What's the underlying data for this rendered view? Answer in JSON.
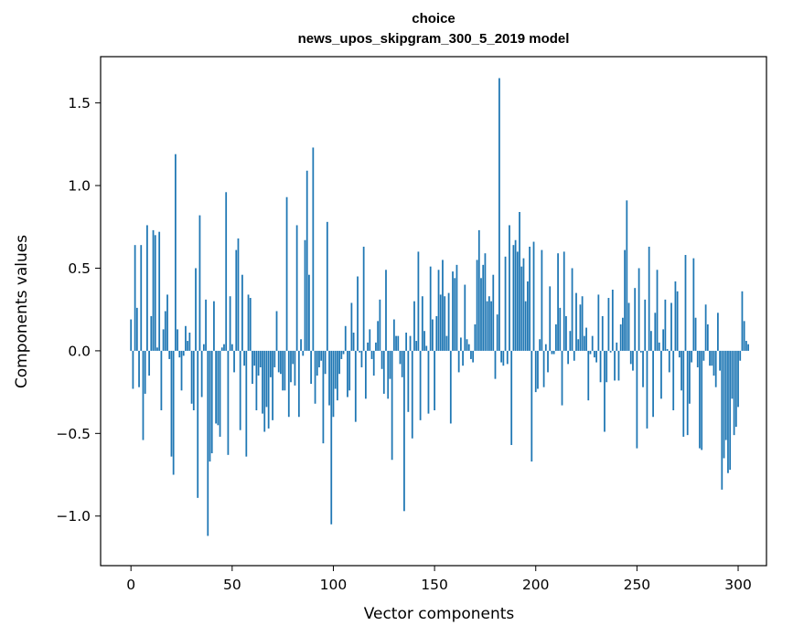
{
  "chart_data": {
    "type": "bar",
    "title": "choice",
    "subtitle": "news_upos_skipgram_300_5_2019 model",
    "xlabel": "Vector components",
    "ylabel": "Components values",
    "xlim": [
      -15,
      314
    ],
    "ylim": [
      -1.3,
      1.78
    ],
    "xticks": [
      0,
      50,
      100,
      150,
      200,
      250,
      300
    ],
    "yticks": [
      -1.0,
      -0.5,
      0.0,
      0.5,
      1.0,
      1.5
    ],
    "ytick_labels": [
      "−1.0",
      "−0.5",
      "0.0",
      "0.5",
      "1.0",
      "1.5"
    ],
    "bar_color": "#1f77b4",
    "x": "0..299",
    "values": [
      0.19,
      -0.23,
      0.64,
      0.26,
      -0.22,
      0.64,
      -0.54,
      -0.26,
      0.76,
      -0.15,
      0.21,
      0.73,
      0.7,
      0.02,
      0.72,
      -0.36,
      0.13,
      0.24,
      0.34,
      -0.05,
      -0.64,
      -0.75,
      1.19,
      0.13,
      -0.04,
      -0.24,
      -0.03,
      0.15,
      0.06,
      0.11,
      -0.32,
      -0.36,
      0.5,
      -0.89,
      0.82,
      -0.28,
      0.04,
      0.31,
      -1.12,
      -0.67,
      -0.62,
      0.3,
      -0.44,
      -0.45,
      -0.52,
      0.02,
      0.04,
      0.96,
      -0.63,
      0.33,
      0.04,
      -0.13,
      0.61,
      0.68,
      -0.48,
      0.46,
      -0.09,
      -0.64,
      0.34,
      0.32,
      -0.2,
      -0.09,
      -0.36,
      -0.15,
      -0.1,
      -0.38,
      -0.49,
      -0.34,
      -0.47,
      -0.16,
      -0.42,
      -0.1,
      0.24,
      -0.13,
      -0.14,
      -0.24,
      -0.24,
      0.93,
      -0.4,
      -0.19,
      -0.08,
      -0.21,
      0.76,
      -0.4,
      0.07,
      -0.03,
      0.67,
      1.09,
      0.46,
      -0.2,
      1.23,
      -0.32,
      -0.15,
      -0.1,
      -0.06,
      -0.56,
      -0.14,
      0.78,
      -0.33,
      -1.05,
      -0.4,
      -0.23,
      -0.3,
      -0.14,
      -0.05,
      -0.02,
      0.15,
      -0.28,
      -0.24,
      0.29,
      0.11,
      -0.43,
      0.45,
      -0.01,
      -0.1,
      0.63,
      -0.29,
      0.05,
      0.13,
      -0.05,
      -0.15,
      0.05,
      0.18,
      0.31,
      -0.11,
      -0.26,
      0.49,
      -0.29,
      -0.17,
      -0.66,
      0.19,
      0.09,
      0.09,
      -0.08,
      -0.16,
      -0.97,
      0.11,
      -0.37,
      0.09,
      -0.53,
      0.3,
      0.06,
      0.6,
      -0.42,
      0.33,
      0.12,
      0.03,
      -0.38,
      0.51,
      0.19,
      -0.36,
      0.21,
      0.49,
      0.34,
      0.55,
      0.33,
      0.09,
      0.35,
      -0.44,
      0.48,
      0.44,
      0.52,
      -0.13,
      0.08,
      -0.09,
      0.4,
      0.07,
      0.04,
      -0.05,
      -0.07,
      0.16,
      0.55,
      0.73,
      0.44,
      0.52,
      0.59,
      0.3,
      0.33,
      0.3,
      0.46,
      -0.17,
      0.22,
      1.65,
      -0.07,
      -0.09,
      0.57,
      -0.08,
      0.76,
      -0.57,
      0.64,
      0.67,
      0.6,
      0.84,
      0.51,
      0.56,
      0.3,
      0.42,
      0.63,
      -0.67,
      0.66,
      -0.25,
      -0.23,
      0.07,
      0.61,
      -0.22,
      0.04,
      -0.13,
      0.39,
      -0.02,
      -0.02,
      0.16,
      0.59,
      0.26,
      -0.33,
      0.6,
      0.21,
      -0.08,
      0.12,
      0.5,
      -0.06,
      0.35,
      0.07,
      0.28,
      0.33,
      0.09,
      0.14,
      -0.3,
      -0.02,
      0.09,
      -0.04,
      -0.07,
      0.34,
      -0.19,
      0.21,
      -0.49,
      -0.19,
      0.32,
      -0.01,
      0.37,
      -0.18,
      0.05,
      -0.18,
      0.16,
      0.2,
      0.61,
      0.91,
      0.29,
      -0.08,
      -0.12,
      0.38,
      -0.59,
      0.5,
      -0.01,
      -0.22,
      0.31,
      -0.47,
      0.63,
      0.12,
      -0.4,
      0.23,
      0.49,
      0.05,
      -0.29,
      0.13,
      0.31,
      0.01,
      -0.13,
      0.29,
      -0.36,
      0.42,
      0.36,
      -0.04,
      -0.24,
      -0.52,
      0.58,
      -0.51,
      -0.32,
      -0.07,
      0.56,
      0.2,
      -0.1,
      -0.59,
      -0.6,
      -0.06,
      0.28,
      0.16,
      -0.09,
      -0.09,
      -0.15,
      -0.22,
      0.23,
      -0.12,
      -0.84,
      -0.65,
      -0.54,
      -0.74,
      -0.72,
      -0.29,
      -0.51,
      -0.46,
      -0.34,
      -0.06,
      0.36,
      0.18,
      0.06,
      0.04
    ]
  },
  "ui": {
    "title": "choice",
    "subtitle": "news_upos_skipgram_300_5_2019 model",
    "xlabel": "Vector components",
    "ylabel": "Components values"
  }
}
